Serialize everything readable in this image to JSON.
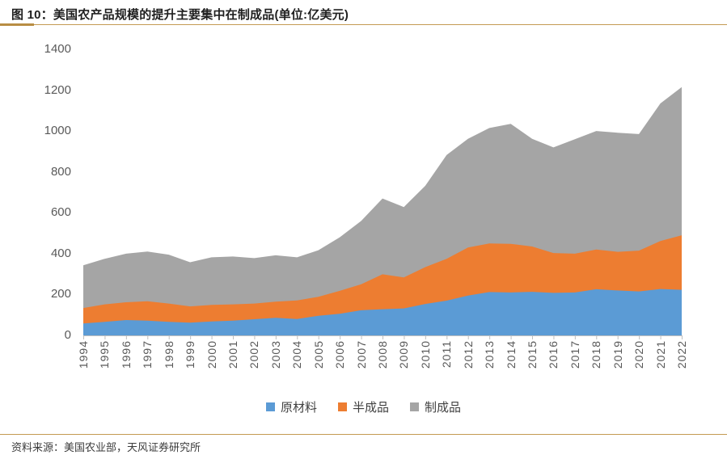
{
  "title": "图 10：美国农产品规模的提升主要集中在制成品(单位:亿美元)",
  "source": "资料来源：美国农业部，天风证券研究所",
  "colors": {
    "accent_rule": "#C49A52",
    "axis_text": "#595959",
    "axis_line": "#BFBFBF",
    "raw_material": "#5B9BD5",
    "semi_finished": "#ED7D31",
    "finished": "#A5A5A5"
  },
  "chart_data": {
    "type": "area",
    "stacked": true,
    "title": "美国农产品规模的提升主要集中在制成品",
    "unit": "亿美元",
    "grid": false,
    "legend_position": "bottom",
    "ylim": [
      0,
      1400
    ],
    "yticks": [
      0,
      200,
      400,
      600,
      800,
      1000,
      1200,
      1400
    ],
    "x": [
      "1994",
      "1995",
      "1996",
      "1997",
      "1998",
      "1999",
      "2000",
      "2001",
      "2002",
      "2003",
      "2004",
      "2005",
      "2006",
      "2007",
      "2008",
      "2009",
      "2010",
      "2011",
      "2012",
      "2013",
      "2014",
      "2015",
      "2016",
      "2017",
      "2018",
      "2019",
      "2020",
      "2021",
      "2022"
    ],
    "series": [
      {
        "name": "原材料",
        "color": "#5B9BD5",
        "values": [
          58,
          66,
          75,
          72,
          66,
          62,
          68,
          72,
          79,
          86,
          80,
          96,
          106,
          123,
          128,
          132,
          154,
          170,
          195,
          212,
          210,
          213,
          208,
          210,
          226,
          220,
          215,
          227,
          223
        ]
      },
      {
        "name": "半成品",
        "color": "#ED7D31",
        "values": [
          76,
          86,
          87,
          95,
          90,
          80,
          81,
          80,
          77,
          79,
          91,
          93,
          112,
          127,
          171,
          152,
          180,
          205,
          235,
          238,
          238,
          222,
          195,
          190,
          194,
          189,
          200,
          235,
          267
        ]
      },
      {
        "name": "制成品",
        "color": "#A5A5A5",
        "values": [
          209,
          223,
          238,
          243,
          239,
          216,
          233,
          234,
          222,
          227,
          211,
          228,
          262,
          310,
          371,
          344,
          398,
          508,
          532,
          565,
          587,
          527,
          517,
          560,
          580,
          583,
          570,
          673,
          725
        ]
      }
    ]
  }
}
